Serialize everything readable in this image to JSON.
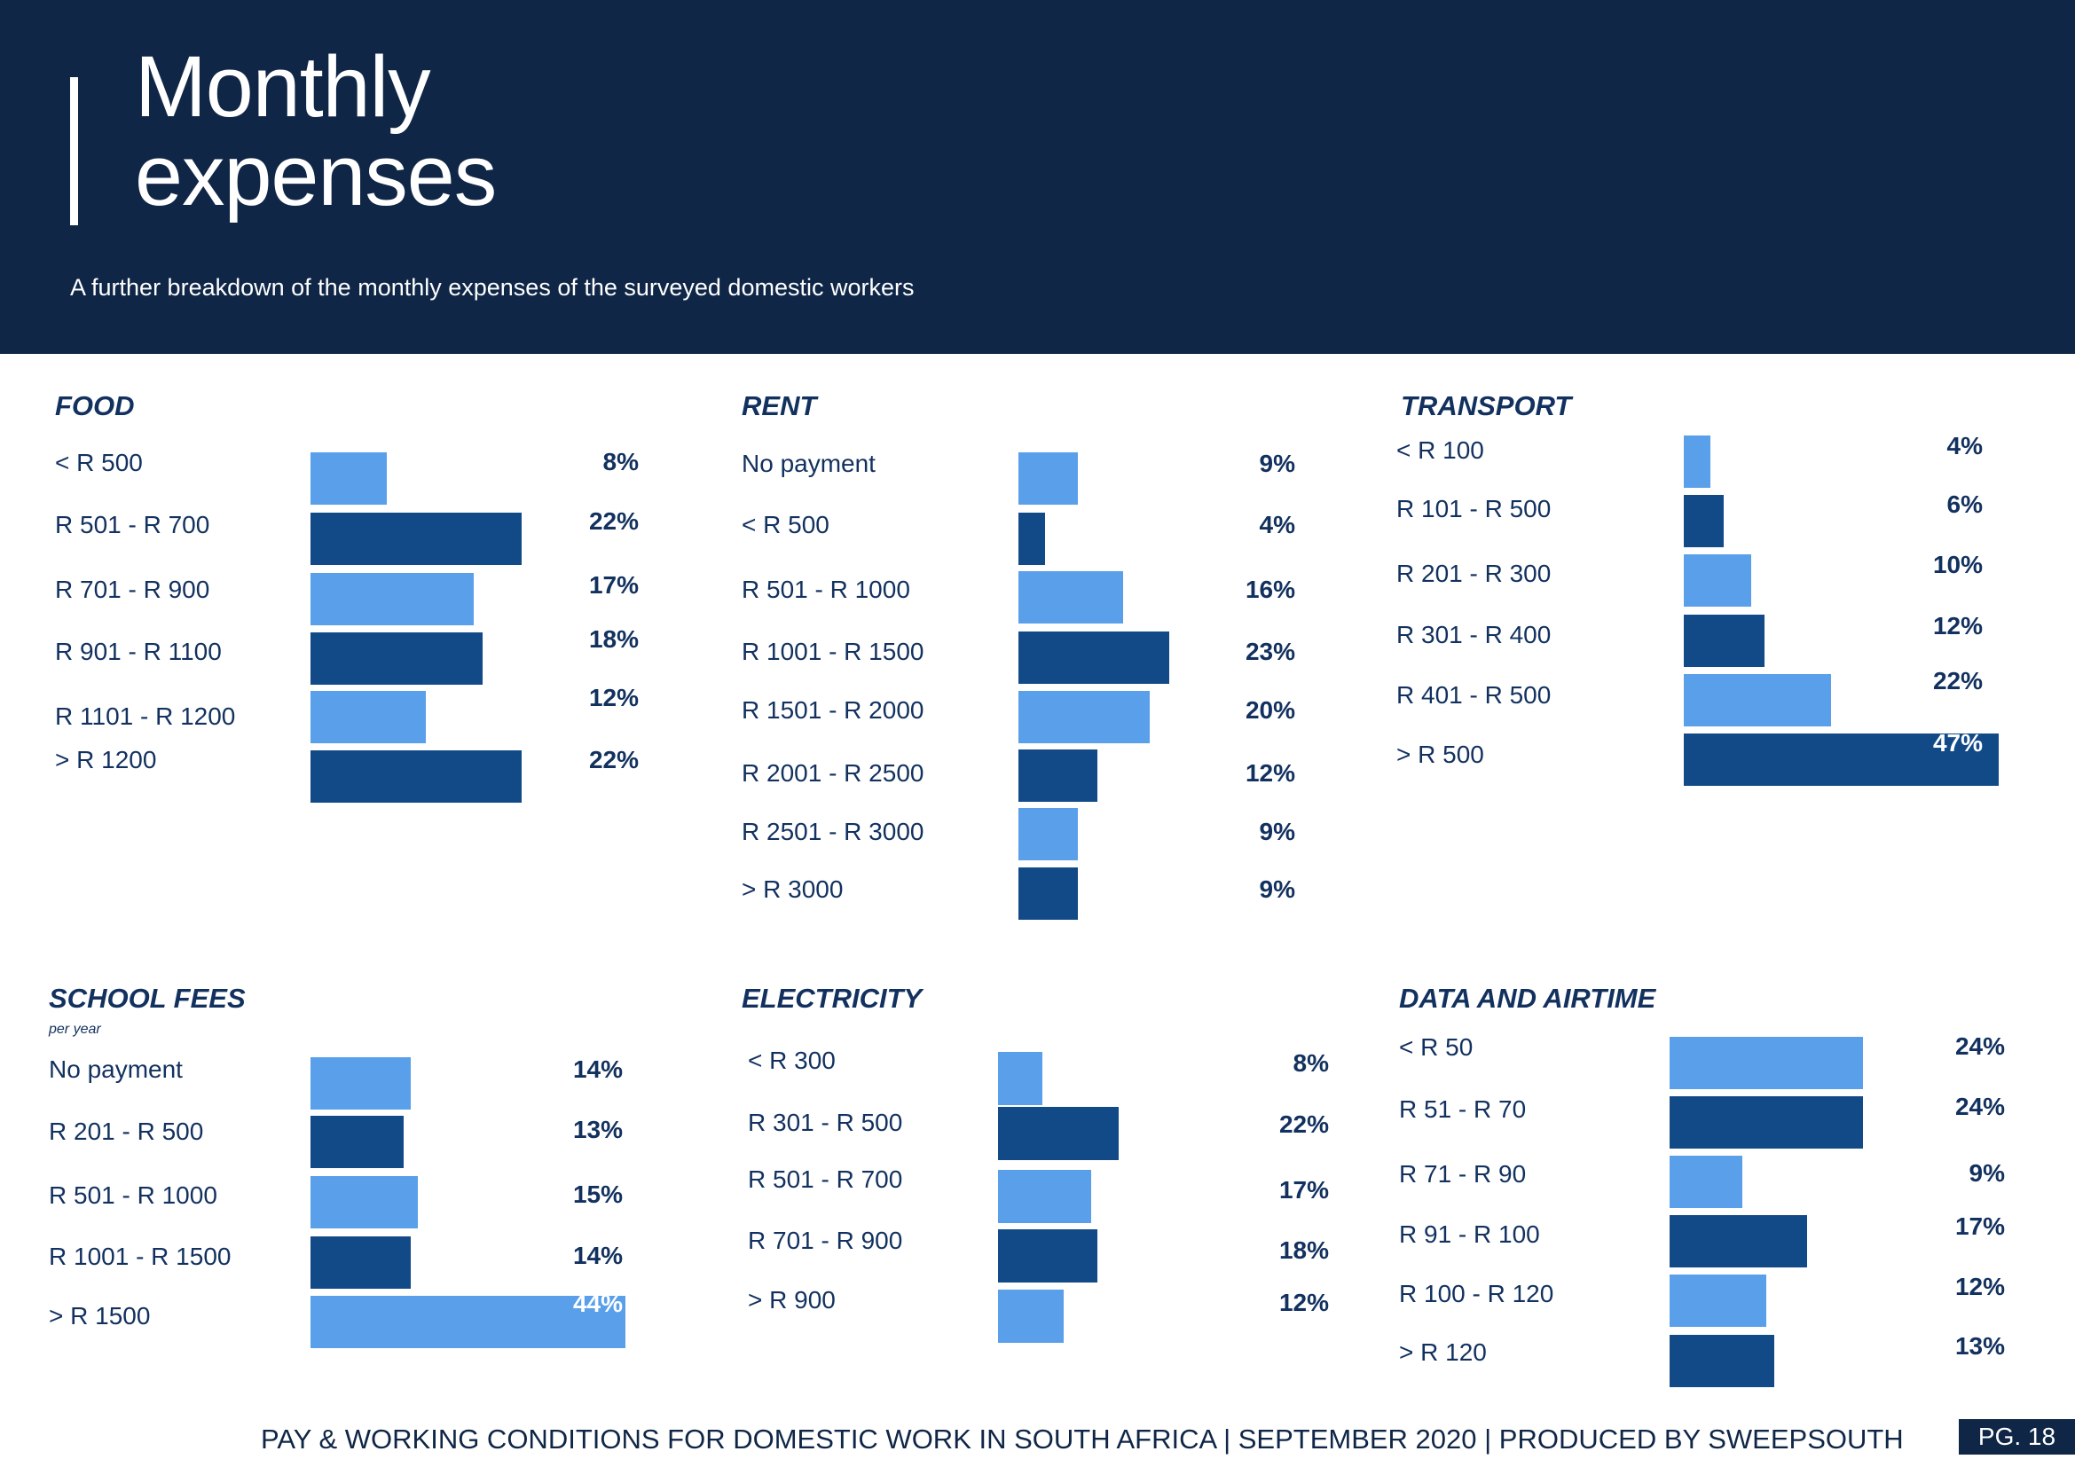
{
  "header": {
    "title_line1": "Monthly",
    "title_line2": "expenses",
    "subtitle": "A further breakdown of the monthly expenses of the surveyed domestic workers"
  },
  "footer": {
    "text": "PAY & WORKING CONDITIONS FOR DOMESTIC WORK IN SOUTH AFRICA  |  SEPTEMBER 2020 | PRODUCED BY SWEEPSOUTH",
    "page": "PG. 18"
  },
  "colors": {
    "header_bg": "#0f2647",
    "bar_light": "#5a9fea",
    "bar_dark": "#124a88",
    "text": "#12315f"
  },
  "chart_data": [
    {
      "type": "bar",
      "orientation": "horizontal",
      "title": "FOOD",
      "categories": [
        "< R 500",
        "R 501 - R 700",
        "R 701 - R 900",
        "R 901 - R 1100",
        "R 1101 - R 1200",
        "> R 1200"
      ],
      "values": [
        8,
        22,
        17,
        18,
        12,
        22
      ],
      "labels": [
        "8%",
        "22%",
        "17%",
        "18%",
        "12%",
        "22%"
      ]
    },
    {
      "type": "bar",
      "orientation": "horizontal",
      "title": "RENT",
      "categories": [
        "No payment",
        "< R 500",
        "R 501 - R 1000",
        "R 1001 - R 1500",
        "R 1501 - R 2000",
        "R 2001 - R 2500",
        "R 2501 - R 3000",
        "> R 3000"
      ],
      "values": [
        9,
        4,
        16,
        23,
        20,
        12,
        9,
        9
      ],
      "labels": [
        "9%",
        "4%",
        "16%",
        "23%",
        "20%",
        "12%",
        "9%",
        "9%"
      ]
    },
    {
      "type": "bar",
      "orientation": "horizontal",
      "title": "TRANSPORT",
      "categories": [
        "< R 100",
        "R 101 - R 500",
        "R 201 - R 300",
        "R 301 - R 400",
        "R 401 - R 500",
        "> R 500"
      ],
      "values": [
        4,
        6,
        10,
        12,
        22,
        47
      ],
      "labels": [
        "4%",
        "6%",
        "10%",
        "12%",
        "22%",
        "47%"
      ]
    },
    {
      "type": "bar",
      "orientation": "horizontal",
      "title": "SCHOOL FEES",
      "note": "per year",
      "categories": [
        "No payment",
        "R 201 - R 500",
        "R 501 - R 1000",
        "R 1001 - R 1500",
        "> R 1500"
      ],
      "values": [
        14,
        13,
        15,
        14,
        44
      ],
      "labels": [
        "14%",
        "13%",
        "15%",
        "14%",
        "44%"
      ]
    },
    {
      "type": "bar",
      "orientation": "horizontal",
      "title": "ELECTRICITY",
      "categories": [
        "< R 300",
        "R 301 - R 500",
        "R 501 - R 700",
        "R 701 - R 900",
        "> R 900"
      ],
      "values": [
        8,
        22,
        17,
        18,
        12
      ],
      "labels": [
        "8%",
        "22%",
        "17%",
        "18%",
        "12%"
      ]
    },
    {
      "type": "bar",
      "orientation": "horizontal",
      "title": "DATA AND AIRTIME",
      "categories": [
        "< R 50",
        "R 51 - R 70",
        "R 71 - R 90",
        "R 91 - R 100",
        "R 100 - R 120",
        "> R 120"
      ],
      "values": [
        24,
        24,
        9,
        17,
        12,
        13
      ],
      "labels": [
        "24%",
        "24%",
        "9%",
        "17%",
        "12%",
        "13%"
      ]
    }
  ]
}
